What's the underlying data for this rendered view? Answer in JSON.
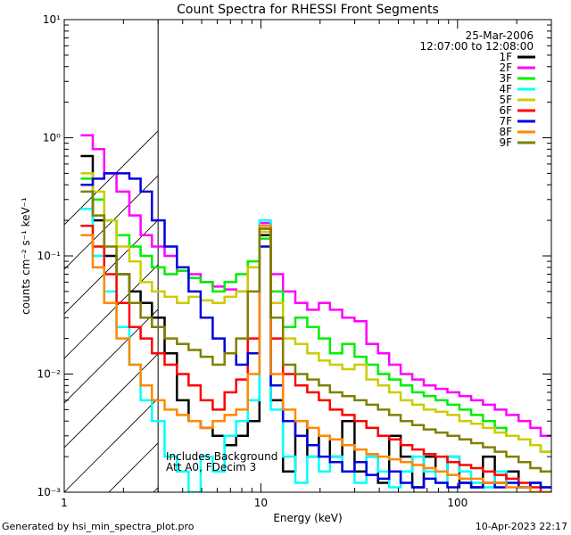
{
  "footer": {
    "generated_by": "Generated by hsi_min_spectra_plot.pro",
    "timestamp": "10-Apr-2023 22:17"
  },
  "chart_data": {
    "type": "line",
    "title": "Count Spectra for RHESSI Front Segments",
    "date": "25-Mar-2006",
    "time_range": "12:07:00 to 12:08:00",
    "xlabel": "Energy (keV)",
    "ylabel": "counts cm⁻² s⁻¹ keV⁻¹",
    "xscale": "log",
    "yscale": "log",
    "xlim": [
      1,
      300
    ],
    "ylim": [
      0.001,
      10
    ],
    "x_ticks": [
      {
        "value": 1,
        "label": "1"
      },
      {
        "value": 10,
        "label": "10"
      },
      {
        "value": 100,
        "label": "100"
      }
    ],
    "y_ticks": [
      {
        "value": 0.001,
        "label": "10⁻³"
      },
      {
        "value": 0.01,
        "label": "10⁻²"
      },
      {
        "value": 0.1,
        "label": "10⁻¹"
      },
      {
        "value": 1,
        "label": "10⁰"
      },
      {
        "value": 10,
        "label": "10¹"
      }
    ],
    "hatched_region": {
      "x_start": 1,
      "x_end": 3
    },
    "annotation": [
      "Includes Background",
      "Att A0, FDecim 3"
    ],
    "legend_position": "top-right",
    "energy_bins_keV": [
      1.3,
      1.5,
      1.7,
      2.0,
      2.3,
      2.6,
      3.0,
      3.5,
      4.0,
      4.6,
      5.3,
      6.1,
      7.0,
      8.0,
      9.2,
      10.5,
      12.0,
      14.0,
      16.0,
      18.5,
      21.0,
      24.0,
      28.0,
      32.0,
      37.0,
      42.0,
      48.0,
      55.0,
      63.0,
      72.0,
      83.0,
      95.0,
      110.0,
      125.0,
      145.0,
      165.0,
      190.0,
      220.0,
      250.0,
      280.0
    ],
    "series": [
      {
        "name": "1F",
        "color": "#000000",
        "values": [
          0.7,
          0.2,
          0.1,
          0.07,
          0.05,
          0.04,
          0.03,
          0.015,
          0.006,
          0.004,
          0.0035,
          0.003,
          0.0025,
          0.003,
          0.004,
          0.15,
          0.006,
          0.0015,
          0.004,
          0.002,
          0.003,
          0.002,
          0.004,
          0.0015,
          0.002,
          0.0012,
          0.003,
          0.002,
          0.0011,
          0.002,
          0.0015,
          0.002,
          0.0012,
          0.0011,
          0.002,
          0.0012,
          0.0015,
          0.0011,
          0.0012,
          0.0011
        ]
      },
      {
        "name": "2F",
        "color": "#ff00ff",
        "values": [
          1.05,
          0.8,
          0.5,
          0.35,
          0.22,
          0.15,
          0.12,
          0.1,
          0.075,
          0.07,
          0.06,
          0.055,
          0.052,
          0.05,
          0.08,
          0.19,
          0.07,
          0.05,
          0.04,
          0.035,
          0.04,
          0.035,
          0.03,
          0.028,
          0.018,
          0.015,
          0.012,
          0.01,
          0.009,
          0.008,
          0.0075,
          0.007,
          0.0065,
          0.006,
          0.0055,
          0.005,
          0.0045,
          0.004,
          0.0035,
          0.003
        ]
      },
      {
        "name": "3F",
        "color": "#00ee00",
        "values": [
          0.45,
          0.3,
          0.2,
          0.15,
          0.12,
          0.1,
          0.08,
          0.07,
          0.075,
          0.065,
          0.06,
          0.05,
          0.06,
          0.07,
          0.09,
          0.14,
          0.05,
          0.025,
          0.03,
          0.025,
          0.02,
          0.015,
          0.018,
          0.014,
          0.012,
          0.01,
          0.009,
          0.008,
          0.007,
          0.0065,
          0.006,
          0.0055,
          0.005,
          0.0045,
          0.004,
          0.0035,
          0.003,
          0.0028,
          0.0025,
          0.0022
        ]
      },
      {
        "name": "4F",
        "color": "#00ffff",
        "values": [
          0.25,
          0.1,
          0.05,
          0.025,
          0.012,
          0.006,
          0.004,
          0.002,
          0.0015,
          0.001,
          0.002,
          0.0015,
          0.003,
          0.004,
          0.006,
          0.2,
          0.005,
          0.002,
          0.0012,
          0.002,
          0.0015,
          0.002,
          0.0015,
          0.0012,
          0.002,
          0.0015,
          0.0011,
          0.0015,
          0.002,
          0.0015,
          0.0012,
          0.002,
          0.0015,
          0.0012,
          0.0011,
          0.0015,
          0.0012,
          0.0011,
          0.0012,
          0.0011
        ]
      },
      {
        "name": "5F",
        "color": "#cccc00",
        "values": [
          0.5,
          0.35,
          0.2,
          0.12,
          0.09,
          0.06,
          0.05,
          0.045,
          0.04,
          0.045,
          0.042,
          0.04,
          0.045,
          0.05,
          0.08,
          0.16,
          0.04,
          0.02,
          0.018,
          0.015,
          0.013,
          0.012,
          0.011,
          0.012,
          0.009,
          0.008,
          0.007,
          0.006,
          0.0055,
          0.005,
          0.0048,
          0.0045,
          0.004,
          0.0038,
          0.0035,
          0.0032,
          0.003,
          0.0028,
          0.0025,
          0.0022
        ]
      },
      {
        "name": "6F",
        "color": "#ff0000",
        "values": [
          0.18,
          0.12,
          0.07,
          0.04,
          0.025,
          0.02,
          0.015,
          0.012,
          0.01,
          0.008,
          0.006,
          0.005,
          0.007,
          0.009,
          0.02,
          0.17,
          0.02,
          0.01,
          0.008,
          0.007,
          0.006,
          0.005,
          0.0045,
          0.004,
          0.0035,
          0.003,
          0.0028,
          0.0025,
          0.0023,
          0.0021,
          0.002,
          0.0018,
          0.0017,
          0.0016,
          0.0015,
          0.0014,
          0.0013,
          0.0012,
          0.0011,
          0.001
        ]
      },
      {
        "name": "7F",
        "color": "#0000dd",
        "values": [
          0.4,
          0.45,
          0.5,
          0.5,
          0.45,
          0.35,
          0.2,
          0.12,
          0.08,
          0.05,
          0.03,
          0.02,
          0.015,
          0.012,
          0.015,
          0.12,
          0.008,
          0.004,
          0.003,
          0.0025,
          0.002,
          0.0018,
          0.0015,
          0.0018,
          0.0014,
          0.0013,
          0.0015,
          0.0012,
          0.0011,
          0.0013,
          0.0012,
          0.0011,
          0.0012,
          0.0011,
          0.0012,
          0.0011,
          0.0012,
          0.0011,
          0.0012,
          0.0011
        ]
      },
      {
        "name": "8F",
        "color": "#ff8800",
        "values": [
          0.15,
          0.08,
          0.04,
          0.02,
          0.012,
          0.008,
          0.006,
          0.005,
          0.0045,
          0.004,
          0.0035,
          0.004,
          0.0045,
          0.005,
          0.01,
          0.18,
          0.01,
          0.005,
          0.004,
          0.0035,
          0.003,
          0.0028,
          0.0025,
          0.0023,
          0.0021,
          0.002,
          0.0019,
          0.0018,
          0.0017,
          0.0016,
          0.0015,
          0.0014,
          0.0013,
          0.0013,
          0.0012,
          0.0012,
          0.0011,
          0.0011,
          0.001,
          0.001
        ]
      },
      {
        "name": "9F",
        "color": "#808000",
        "values": [
          0.35,
          0.22,
          0.12,
          0.07,
          0.04,
          0.03,
          0.025,
          0.02,
          0.018,
          0.016,
          0.014,
          0.012,
          0.015,
          0.02,
          0.05,
          0.17,
          0.03,
          0.012,
          0.01,
          0.009,
          0.008,
          0.007,
          0.0065,
          0.006,
          0.0055,
          0.005,
          0.0045,
          0.004,
          0.0037,
          0.0034,
          0.0032,
          0.003,
          0.0028,
          0.0026,
          0.0024,
          0.0022,
          0.002,
          0.0018,
          0.0016,
          0.0015
        ]
      }
    ]
  }
}
